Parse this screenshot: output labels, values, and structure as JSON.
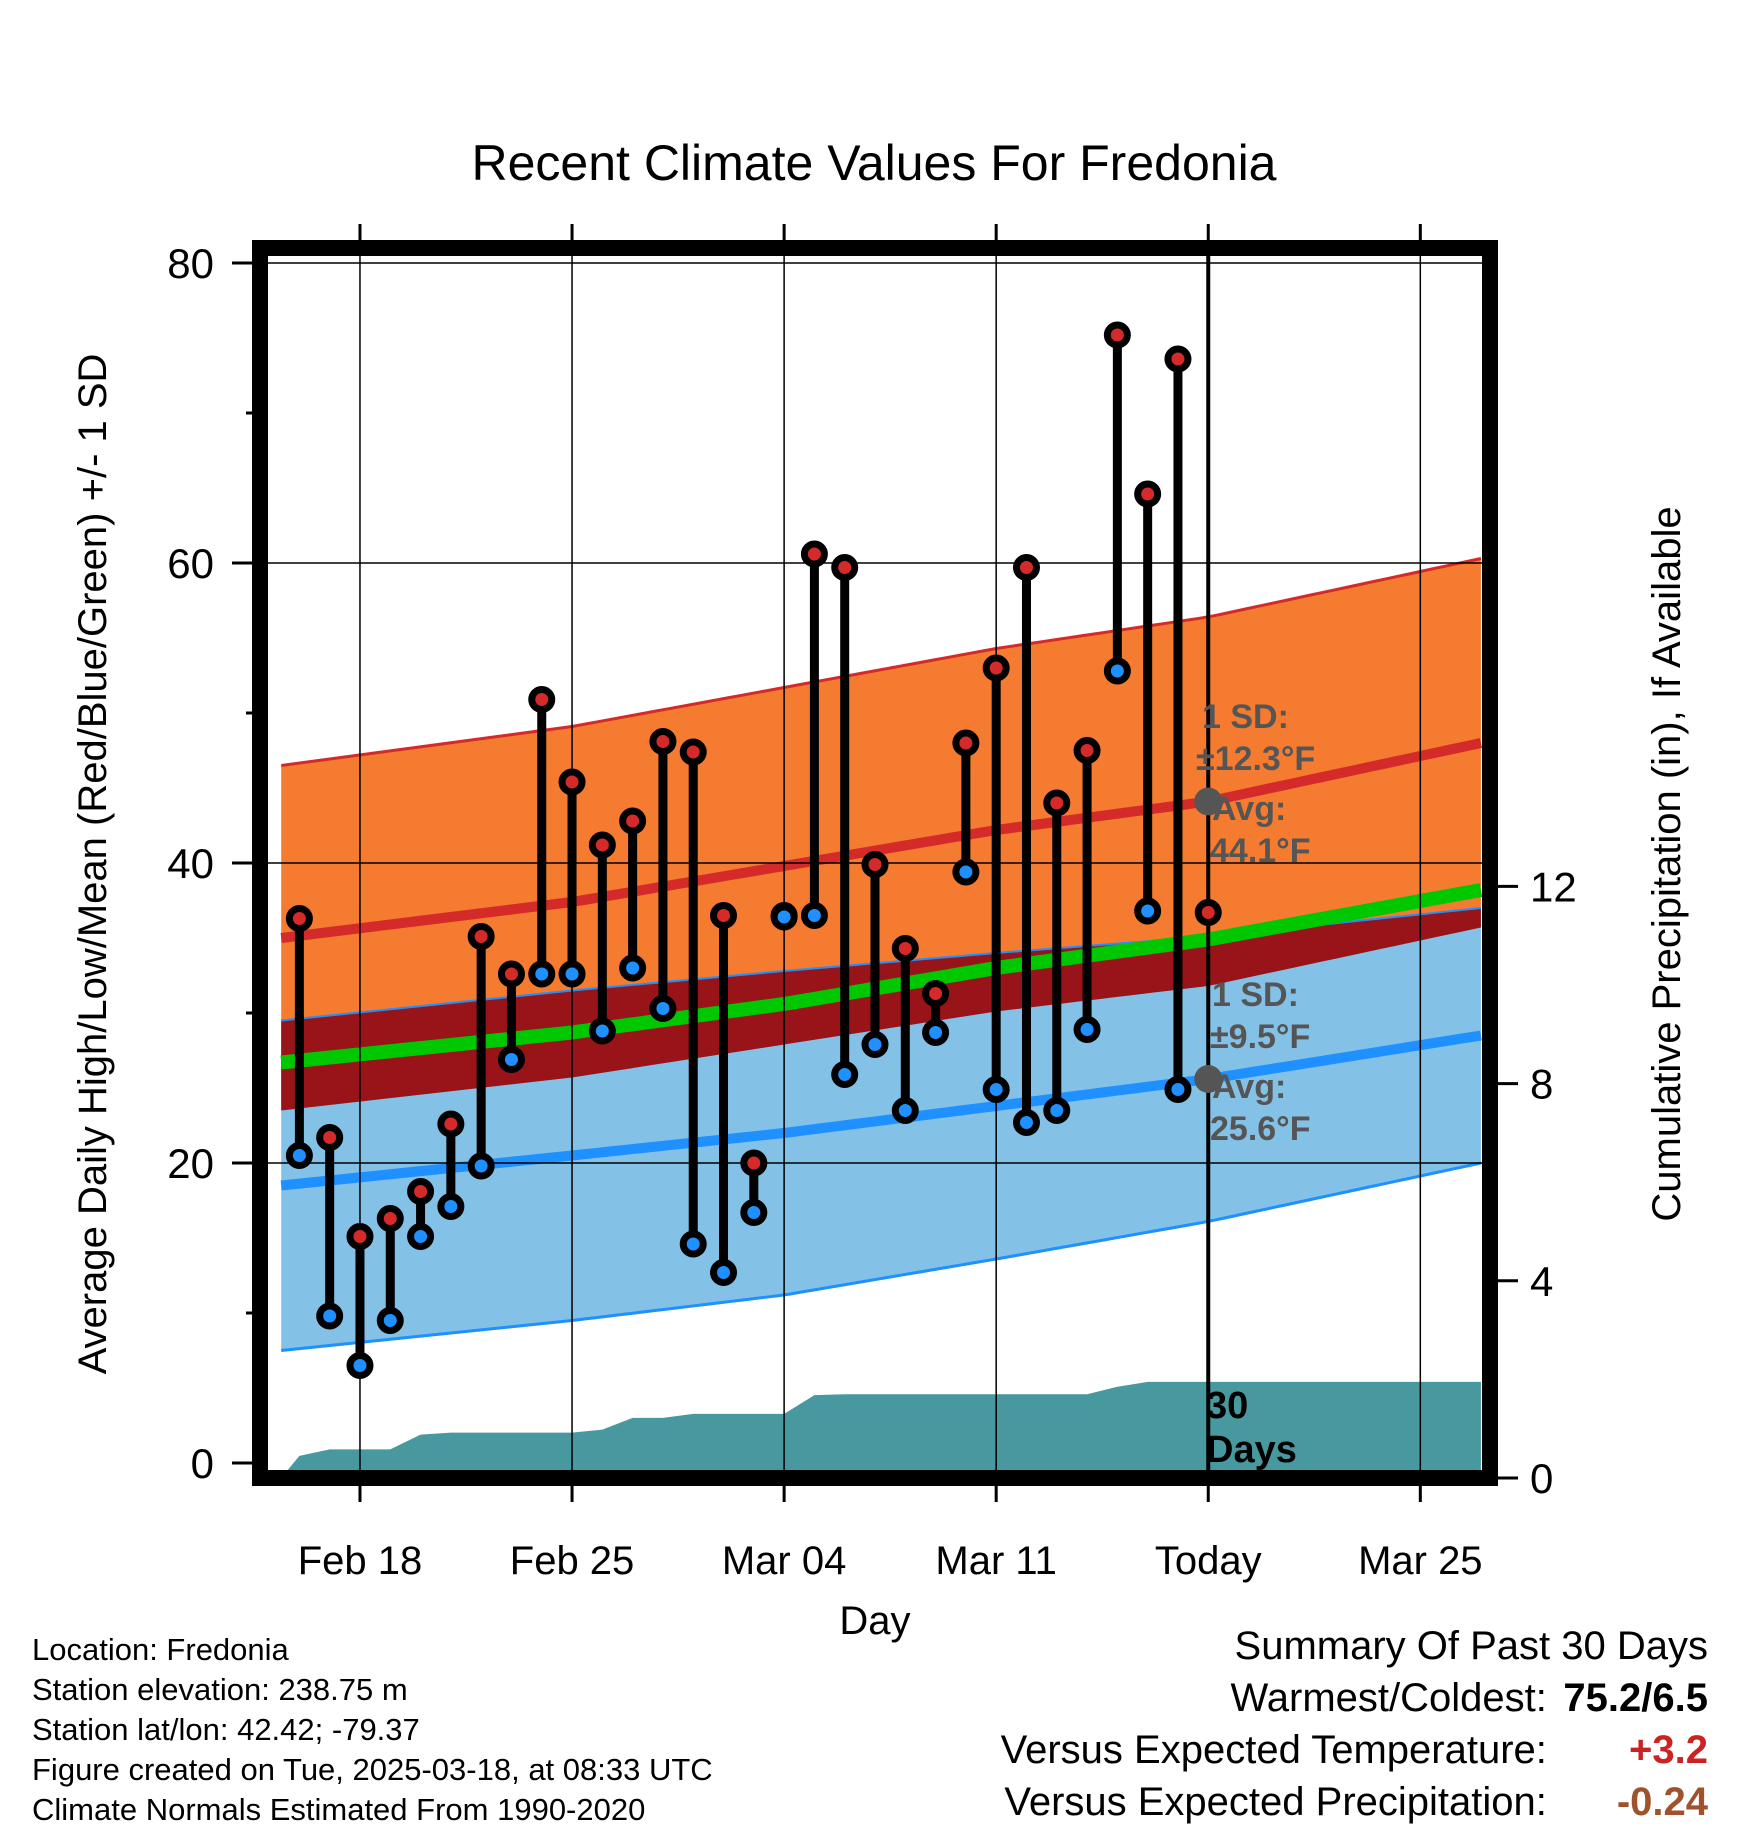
{
  "chart_data": {
    "type": "line",
    "title": "Recent Climate Values For Fredonia",
    "xlabel": "Day",
    "ylabel_left": "Average Daily High/Low/Mean (Red/Blue/Green) +/- 1 SD",
    "ylabel_right": "Cumulative Precipitation (in), If Available",
    "ylim_left": [
      -1,
      81
    ],
    "ylim_right": [
      0,
      24.95
    ],
    "yticks_left": [
      0,
      20,
      40,
      60,
      80
    ],
    "yticks_right": [
      0,
      4,
      8,
      12
    ],
    "xlim_day": [
      -3.3,
      37.3
    ],
    "x_ticks": [
      {
        "day": 0,
        "label": "Feb 18"
      },
      {
        "day": 7,
        "label": "Feb 25"
      },
      {
        "day": 14,
        "label": "Mar 04"
      },
      {
        "day": 21,
        "label": "Mar 11"
      },
      {
        "day": 28,
        "label": "Today"
      },
      {
        "day": 35,
        "label": "Mar 25"
      }
    ],
    "today_day": 28,
    "normals": {
      "days": [
        -2.6,
        7,
        14,
        21,
        28,
        37
      ],
      "high_avg": [
        35,
        37.4,
        39.8,
        42.2,
        44.1,
        48
      ],
      "high_sd": [
        11.5,
        11.7,
        11.9,
        12.1,
        12.3,
        12.3
      ],
      "low_avg": [
        18.5,
        20.5,
        22,
        23.8,
        25.6,
        28.5
      ],
      "low_sd": [
        11,
        11,
        10.8,
        10.2,
        9.5,
        8.5
      ],
      "mean_avg": [
        26.7,
        28.7,
        30.6,
        33,
        34.9,
        38.2
      ]
    },
    "daily_highs": [
      36.3,
      21.7,
      15.1,
      16.3,
      18.1,
      22.6,
      35.1,
      32.6,
      50.9,
      45.4,
      41.2,
      42.8,
      48.1,
      47.4,
      36.5,
      20.0,
      36.5,
      60.6,
      59.7,
      39.9,
      34.3,
      31.3,
      48.0,
      53.0,
      59.7,
      44.0,
      47.5,
      75.2,
      64.6,
      73.6,
      36.7
    ],
    "daily_lows": [
      20.5,
      9.8,
      6.5,
      9.5,
      15.1,
      17.1,
      19.8,
      26.9,
      32.6,
      32.6,
      28.8,
      33.0,
      30.3,
      14.6,
      12.7,
      16.7,
      36.4,
      36.5,
      25.9,
      27.9,
      23.5,
      28.7,
      39.4,
      24.9,
      22.7,
      23.5,
      28.9,
      52.8,
      36.8,
      24.9
    ],
    "first_day": -2,
    "precip_days": [
      -2.6,
      -2,
      -1,
      0,
      1,
      2,
      3,
      4,
      5,
      6,
      7,
      8,
      9,
      10,
      11,
      12,
      13,
      14,
      15,
      16,
      17,
      18,
      19,
      20,
      21,
      22,
      23,
      24,
      25,
      26,
      27,
      28,
      29,
      30,
      31,
      32,
      33,
      34,
      35,
      36,
      37
    ],
    "precip_cumulative": [
      0.0,
      0.45,
      0.58,
      0.58,
      0.58,
      0.88,
      0.92,
      0.92,
      0.92,
      0.92,
      0.92,
      0.98,
      1.22,
      1.22,
      1.3,
      1.3,
      1.3,
      1.3,
      1.68,
      1.7,
      1.7,
      1.7,
      1.7,
      1.7,
      1.7,
      1.7,
      1.7,
      1.7,
      1.85,
      1.95,
      1.95,
      1.95,
      1.95,
      1.95,
      1.95,
      1.95,
      1.95,
      1.95,
      1.95,
      1.95,
      1.95
    ],
    "annotations": {
      "high_sd_label": "1 SD:",
      "high_sd_value": "±12.3°F",
      "high_avg_label": "Avg:",
      "high_avg_value": "44.1°F",
      "low_sd_label": "1 SD:",
      "low_sd_value": "±9.5°F",
      "low_avg_label": "Avg:",
      "low_avg_value": "25.6°F",
      "period_number": "30",
      "period_unit": "Days"
    },
    "colors": {
      "high_band": "#f47b2f",
      "high_line": "#d42a2a",
      "low_band": "#84c1e7",
      "low_line": "#1e90ff",
      "mean_band": "#981419",
      "mean_line": "#00c800",
      "precip": "#47999f",
      "high_dot": "#d42a2a",
      "low_dot": "#1e90ff",
      "annotation": "#555555"
    }
  },
  "footer": {
    "location": "Location: Fredonia",
    "elevation": "Station elevation: 238.75 m",
    "latlon": "Station lat/lon: 42.42; -79.37",
    "created": "Figure created on Tue, 2025-03-18, at 08:33 UTC",
    "normals": "Climate Normals Estimated From 1990-2020"
  },
  "summary": {
    "heading": "Summary Of Past 30 Days",
    "warm_cold_label": "Warmest/Coldest:",
    "warm_cold_value": "75.2/6.5",
    "temp_label": "Versus Expected Temperature:",
    "temp_value": "+3.2",
    "temp_color": "#cc2222",
    "precip_label": "Versus Expected Precipitation:",
    "precip_value": "-0.24",
    "precip_color": "#a0522d"
  }
}
